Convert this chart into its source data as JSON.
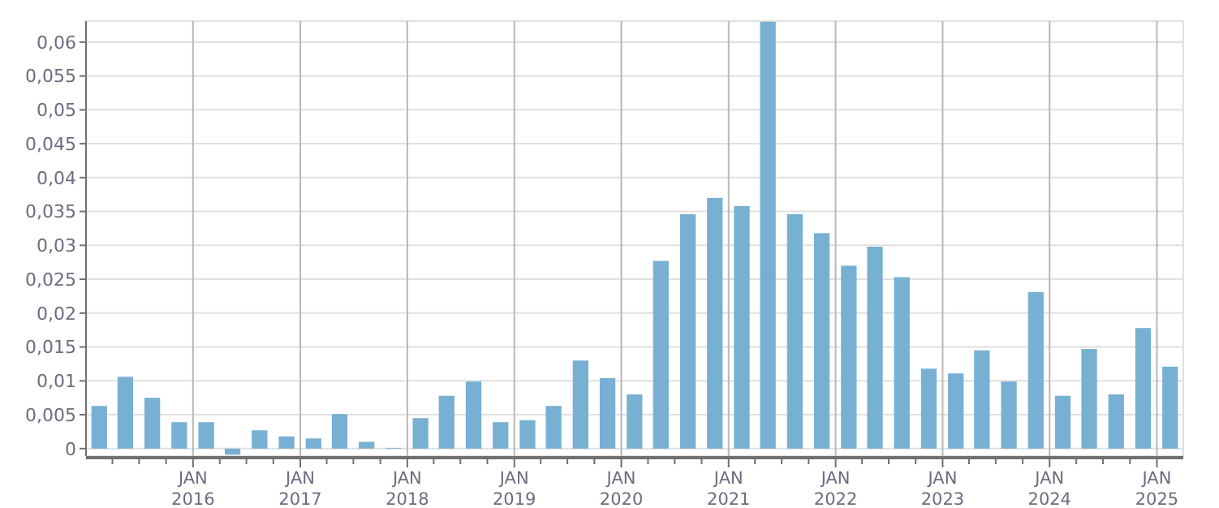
{
  "chart_data": {
    "type": "bar",
    "color": "#78b0d3",
    "x": [
      "2015-02-15",
      "2015-05-15",
      "2015-08-15",
      "2015-11-15",
      "2016-02-15",
      "2016-05-15",
      "2016-08-15",
      "2016-11-15",
      "2017-02-15",
      "2017-05-15",
      "2017-08-15",
      "2017-11-15",
      "2018-02-15",
      "2018-05-15",
      "2018-08-15",
      "2018-11-15",
      "2019-02-15",
      "2019-05-15",
      "2019-08-15",
      "2019-11-15",
      "2020-02-15",
      "2020-05-15",
      "2020-08-15",
      "2020-11-15",
      "2021-02-15",
      "2021-05-15",
      "2021-08-15",
      "2021-11-15",
      "2022-02-15",
      "2022-05-15",
      "2022-08-15",
      "2022-11-15",
      "2023-02-15",
      "2023-05-15",
      "2023-08-15",
      "2023-11-15",
      "2024-02-15",
      "2024-05-15",
      "2024-08-15",
      "2024-11-15",
      "2025-02-15"
    ],
    "values": [
      0.0063,
      0.0106,
      0.0075,
      0.0039,
      0.0039,
      -0.0009,
      0.0027,
      0.0018,
      0.0015,
      0.0051,
      0.001,
      0.0001,
      0.0045,
      0.0078,
      0.0099,
      0.0039,
      0.0042,
      0.0063,
      0.013,
      0.0104,
      0.008,
      0.0277,
      0.0346,
      0.037,
      0.0358,
      0.063,
      0.0346,
      0.0318,
      0.027,
      0.0298,
      0.0253,
      0.0118,
      0.0111,
      0.0145,
      0.0099,
      0.0231,
      0.0078,
      0.0147,
      0.008,
      0.0178,
      0.0121
    ],
    "xlim": [
      "2015-01-01",
      "2025-04-01"
    ],
    "xticks": [
      {
        "value": "2015-04-01",
        "label": null
      },
      {
        "value": "2015-07-01",
        "label": null
      },
      {
        "value": "2015-10-01",
        "label": null
      },
      {
        "value": "2016-01-01",
        "label": "JAN\n2016"
      },
      {
        "value": "2016-04-01",
        "label": null
      },
      {
        "value": "2016-07-01",
        "label": null
      },
      {
        "value": "2016-10-01",
        "label": null
      },
      {
        "value": "2017-01-01",
        "label": "JAN\n2017"
      },
      {
        "value": "2017-04-01",
        "label": null
      },
      {
        "value": "2017-07-01",
        "label": null
      },
      {
        "value": "2017-10-01",
        "label": null
      },
      {
        "value": "2018-01-01",
        "label": "JAN\n2018"
      },
      {
        "value": "2018-04-01",
        "label": null
      },
      {
        "value": "2018-07-01",
        "label": null
      },
      {
        "value": "2018-10-01",
        "label": null
      },
      {
        "value": "2019-01-01",
        "label": "JAN\n2019"
      },
      {
        "value": "2019-04-01",
        "label": null
      },
      {
        "value": "2019-07-01",
        "label": null
      },
      {
        "value": "2019-10-01",
        "label": null
      },
      {
        "value": "2020-01-01",
        "label": "JAN\n2020"
      },
      {
        "value": "2020-04-01",
        "label": null
      },
      {
        "value": "2020-07-01",
        "label": null
      },
      {
        "value": "2020-10-01",
        "label": null
      },
      {
        "value": "2021-01-01",
        "label": "JAN\n2021"
      },
      {
        "value": "2021-04-01",
        "label": null
      },
      {
        "value": "2021-07-01",
        "label": null
      },
      {
        "value": "2021-10-01",
        "label": null
      },
      {
        "value": "2022-01-01",
        "label": "JAN\n2022"
      },
      {
        "value": "2022-04-01",
        "label": null
      },
      {
        "value": "2022-07-01",
        "label": null
      },
      {
        "value": "2022-10-01",
        "label": null
      },
      {
        "value": "2023-01-01",
        "label": "JAN\n2023"
      },
      {
        "value": "2023-04-01",
        "label": null
      },
      {
        "value": "2023-07-01",
        "label": null
      },
      {
        "value": "2023-10-01",
        "label": null
      },
      {
        "value": "2024-01-01",
        "label": "JAN\n2024"
      },
      {
        "value": "2024-04-01",
        "label": null
      },
      {
        "value": "2024-07-01",
        "label": null
      },
      {
        "value": "2024-10-01",
        "label": null
      },
      {
        "value": "2025-01-01",
        "label": "JAN\n2025"
      }
    ],
    "ylim": [
      -0.0011,
      0.0631
    ],
    "yticks": [
      0,
      {
        "value": 0.005,
        "label": "0,005"
      },
      {
        "value": 0.01,
        "label": "0,01"
      },
      {
        "value": 0.015,
        "label": "0,015"
      },
      {
        "value": 0.02,
        "label": "0,02"
      },
      {
        "value": 0.025,
        "label": "0,025"
      },
      {
        "value": 0.03,
        "label": "0,03"
      },
      {
        "value": 0.035,
        "label": "0,035"
      },
      {
        "value": 0.04,
        "label": "0,04"
      },
      {
        "value": 0.045,
        "label": "0,045"
      },
      {
        "value": 0.05,
        "label": "0,05"
      },
      {
        "value": 0.055,
        "label": "0,055"
      },
      {
        "value": 0.06,
        "label": "0,06"
      }
    ],
    "grid": true
  }
}
